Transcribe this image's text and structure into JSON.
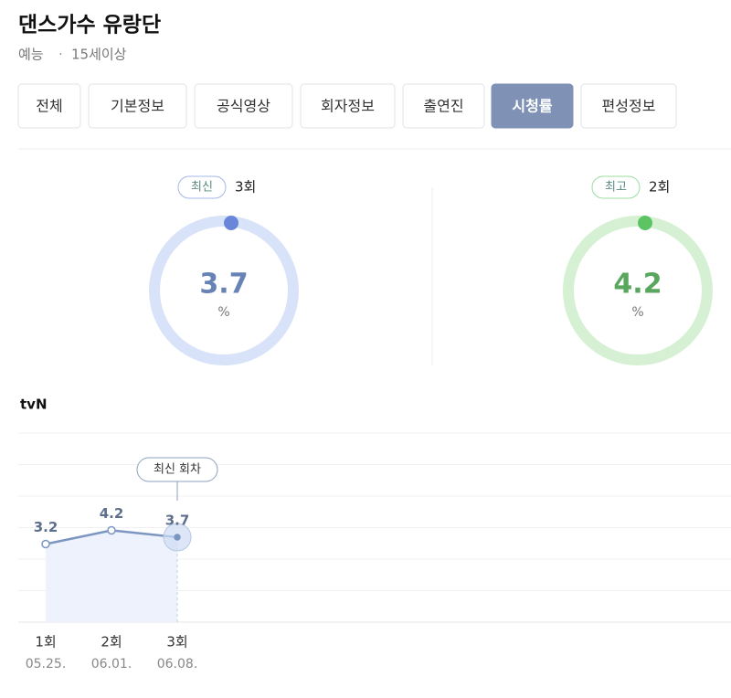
{
  "header": {
    "title": "댄스가수 유랑단",
    "meta": [
      "예능",
      "15세이상"
    ]
  },
  "tabs": [
    {
      "label": "전체",
      "active": false
    },
    {
      "label": "기본정보",
      "active": false
    },
    {
      "label": "공식영상",
      "active": false
    },
    {
      "label": "회자정보",
      "active": false
    },
    {
      "label": "출연진",
      "active": false
    },
    {
      "label": "시청률",
      "active": true
    },
    {
      "label": "편성정보",
      "active": false
    }
  ],
  "cards": [
    {
      "badge": "최신",
      "episode": "3회",
      "value": 3.7,
      "unit": "%",
      "color": "#6a86d8",
      "ring": "#d8e2f8",
      "text_color": "#6782b4"
    },
    {
      "badge": "최고",
      "episode": "2회",
      "value": 4.2,
      "unit": "%",
      "color": "#5cc462",
      "ring": "#d5f0d3",
      "text_color": "#59a65e"
    }
  ],
  "chart_data": {
    "type": "line",
    "title": "tvN",
    "categories": [
      "1회",
      "2회",
      "3회"
    ],
    "dates": [
      "05.25.",
      "06.01.",
      "06.08."
    ],
    "values": [
      3.2,
      4.2,
      3.7
    ],
    "color": "#7c96c2",
    "annotation": "최신 회차",
    "ylim": [
      -2.5,
      11.3
    ],
    "grid": true
  }
}
